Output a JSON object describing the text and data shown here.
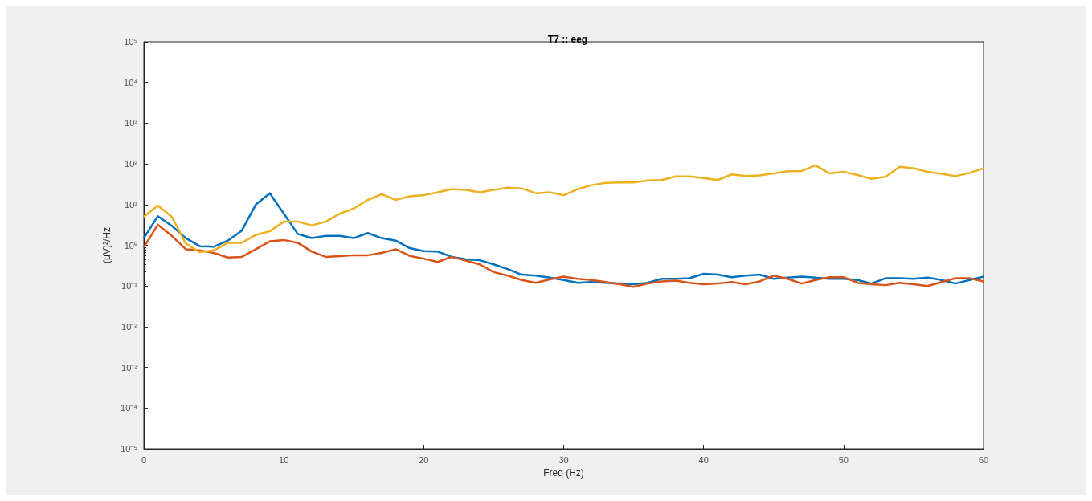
{
  "chart_data": {
    "type": "line",
    "title": "T7 :: eeg",
    "xlabel": "Freq (Hz)",
    "ylabel": "(μV)²/Hz",
    "x": [
      0,
      1,
      2,
      3,
      4,
      5,
      6,
      7,
      8,
      9,
      10,
      11,
      12,
      13,
      14,
      15,
      16,
      17,
      18,
      19,
      20,
      21,
      22,
      23,
      24,
      25,
      26,
      27,
      28,
      29,
      30,
      31,
      32,
      33,
      34,
      35,
      36,
      37,
      38,
      39,
      40,
      41,
      42,
      43,
      44,
      45,
      46,
      47,
      48,
      49,
      50,
      51,
      52,
      53,
      54,
      55,
      56,
      57,
      58,
      59,
      60
    ],
    "series": [
      {
        "color": "#0072bd",
        "values": [
          1.5,
          5.2,
          3.0,
          1.5,
          0.95,
          0.92,
          1.3,
          2.3,
          10,
          19,
          6,
          1.9,
          1.5,
          1.7,
          1.7,
          1.5,
          2.0,
          1.5,
          1.3,
          0.85,
          0.72,
          0.7,
          0.52,
          0.45,
          0.43,
          0.34,
          0.26,
          0.19,
          0.18,
          0.16,
          0.14,
          0.12,
          0.125,
          0.12,
          0.115,
          0.11,
          0.12,
          0.15,
          0.15,
          0.155,
          0.2,
          0.19,
          0.165,
          0.18,
          0.19,
          0.15,
          0.16,
          0.17,
          0.16,
          0.15,
          0.15,
          0.14,
          0.115,
          0.155,
          0.155,
          0.15,
          0.16,
          0.14,
          0.115,
          0.14,
          0.17
        ]
      },
      {
        "color": "#d95319",
        "values": [
          0.9,
          3.2,
          1.7,
          0.8,
          0.75,
          0.65,
          0.5,
          0.52,
          0.8,
          1.25,
          1.35,
          1.15,
          0.7,
          0.52,
          0.54,
          0.57,
          0.57,
          0.65,
          0.8,
          0.55,
          0.47,
          0.39,
          0.52,
          0.42,
          0.34,
          0.22,
          0.18,
          0.14,
          0.12,
          0.145,
          0.17,
          0.15,
          0.14,
          0.125,
          0.11,
          0.095,
          0.115,
          0.13,
          0.135,
          0.12,
          0.11,
          0.115,
          0.125,
          0.11,
          0.13,
          0.18,
          0.15,
          0.115,
          0.14,
          0.165,
          0.165,
          0.12,
          0.11,
          0.105,
          0.12,
          0.11,
          0.1,
          0.125,
          0.155,
          0.155,
          0.13
        ]
      },
      {
        "color": "#edb120",
        "values": [
          5,
          9.5,
          5,
          1.1,
          0.68,
          0.75,
          1.15,
          1.15,
          1.8,
          2.2,
          3.8,
          3.8,
          3.1,
          3.8,
          6,
          8,
          13,
          18,
          13,
          16,
          17,
          20,
          24,
          23,
          20,
          23,
          26,
          25,
          19,
          20,
          17,
          24,
          30,
          34,
          35,
          35,
          39,
          40,
          49,
          49,
          45,
          40,
          55,
          50,
          52,
          58,
          66,
          67,
          92,
          58,
          64,
          53,
          43,
          48,
          85,
          78,
          64,
          57,
          50,
          60,
          78
        ]
      }
    ],
    "xlim": [
      0,
      60
    ],
    "xticks": [
      0,
      10,
      20,
      30,
      40,
      50,
      60
    ],
    "ylim": [
      1e-05,
      100000
    ],
    "yticks": [
      {
        "value": 1e-05,
        "label": "10⁻⁵"
      },
      {
        "value": 0.0001,
        "label": "10⁻⁴"
      },
      {
        "value": 0.001,
        "label": "10⁻³"
      },
      {
        "value": 0.01,
        "label": "10⁻²"
      },
      {
        "value": 0.1,
        "label": "10⁻¹"
      },
      {
        "value": 1,
        "label": "10⁰"
      },
      {
        "value": 10,
        "label": "10¹"
      },
      {
        "value": 100,
        "label": "10²"
      },
      {
        "value": 1000,
        "label": "10³"
      },
      {
        "value": 10000,
        "label": "10⁴"
      },
      {
        "value": 100000,
        "label": "10⁵"
      }
    ],
    "log": "y",
    "grid": false,
    "legend": false,
    "marker": "none",
    "line_style": "solid"
  }
}
